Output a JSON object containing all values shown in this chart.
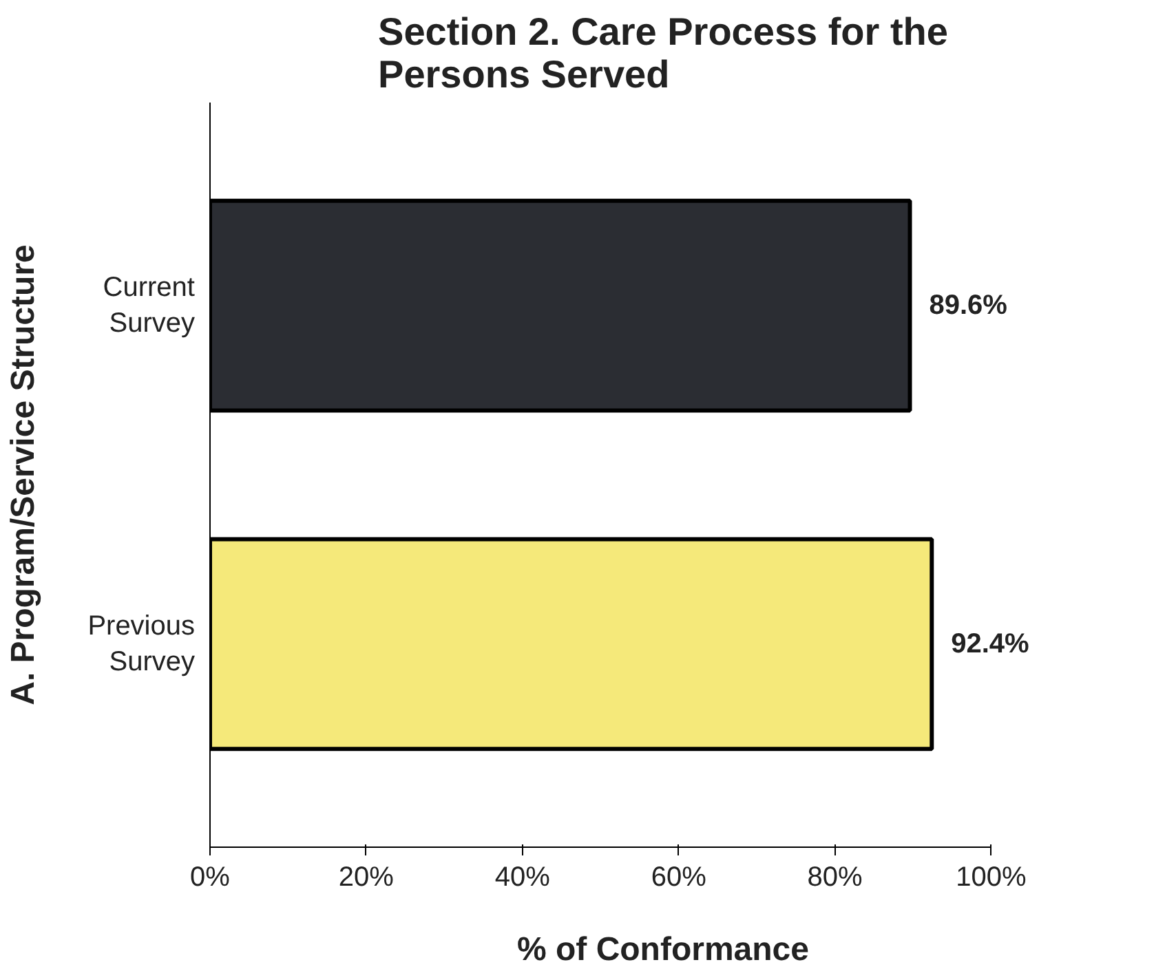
{
  "chart_data": {
    "type": "bar",
    "orientation": "horizontal",
    "title": "Section 2. Care Process for the\nPersons Served",
    "xlabel": "% of Conformance",
    "ylabel": "A. Program/Service Structure",
    "categories": [
      "Current Survey",
      "Previous Survey"
    ],
    "values": [
      89.6,
      92.4
    ],
    "colors": [
      "#2b2d33",
      "#f5e97a"
    ],
    "value_labels": [
      "89.6%",
      "92.4%"
    ],
    "xlim": [
      0,
      100
    ],
    "xticks": [
      {
        "value": 0,
        "label": "0%"
      },
      {
        "value": 20,
        "label": "20%"
      },
      {
        "value": 40,
        "label": "40%"
      },
      {
        "value": 60,
        "label": "60%"
      },
      {
        "value": 80,
        "label": "80%"
      },
      {
        "value": 100,
        "label": "100%"
      }
    ],
    "grid": false
  }
}
